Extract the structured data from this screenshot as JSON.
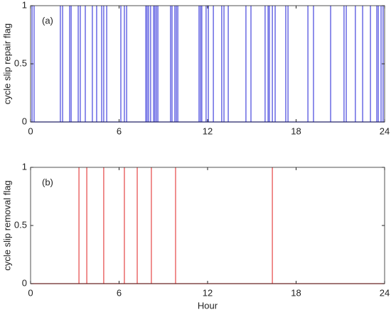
{
  "chart_data": [
    {
      "type": "spike",
      "ylabel": "cycle slip repair flag",
      "annotation": "(a)",
      "color": "#1f1fd6",
      "x": [
        0.1,
        0.24,
        2.02,
        2.17,
        2.65,
        2.75,
        3.23,
        3.37,
        3.71,
        4.19,
        4.48,
        4.82,
        4.96,
        5.16,
        6.12,
        6.36,
        6.51,
        7.81,
        7.9,
        8.0,
        8.14,
        8.34,
        8.43,
        8.53,
        8.63,
        9.49,
        9.59,
        9.78,
        9.88,
        9.98,
        11.42,
        11.52,
        11.61,
        11.9,
        12.05,
        12.39,
        12.96,
        13.11,
        13.4,
        14.6,
        14.94,
        15.9,
        16.1,
        16.19,
        16.39,
        16.58,
        17.3,
        17.45,
        18.8,
        19.18,
        20.34,
        21.25,
        21.4,
        22.02,
        22.51,
        23.04,
        23.47,
        23.57,
        23.76,
        23.9
      ],
      "values": [
        1,
        1,
        1,
        1,
        1,
        1,
        1,
        1,
        1,
        1,
        1,
        1,
        1,
        1,
        1,
        1,
        1,
        1,
        1,
        1,
        1,
        1,
        1,
        1,
        1,
        1,
        1,
        1,
        1,
        1,
        1,
        1,
        1,
        1,
        1,
        1,
        1,
        1,
        1,
        1,
        1,
        1,
        1,
        1,
        1,
        1,
        1,
        1,
        1,
        1,
        1,
        1,
        1,
        1,
        1,
        1,
        1,
        1,
        1,
        1
      ],
      "xlim": [
        0,
        24
      ],
      "xticks": [
        0,
        6,
        12,
        18,
        24
      ],
      "ylim": [
        0,
        1
      ],
      "yticks": [
        0,
        0.5,
        1
      ]
    },
    {
      "type": "spike",
      "ylabel": "cycle slip removal flag",
      "xlabel": "Hour",
      "annotation": "(b)",
      "color": "#e02020",
      "x": [
        3.28,
        3.81,
        4.96,
        6.36,
        7.23,
        8.19,
        9.83,
        16.39
      ],
      "values": [
        1,
        1,
        1,
        1,
        1,
        1,
        1,
        1
      ],
      "xlim": [
        0,
        24
      ],
      "xticks": [
        0,
        6,
        12,
        18,
        24
      ],
      "ylim": [
        0,
        1
      ],
      "yticks": [
        0,
        0.5,
        1
      ]
    }
  ]
}
